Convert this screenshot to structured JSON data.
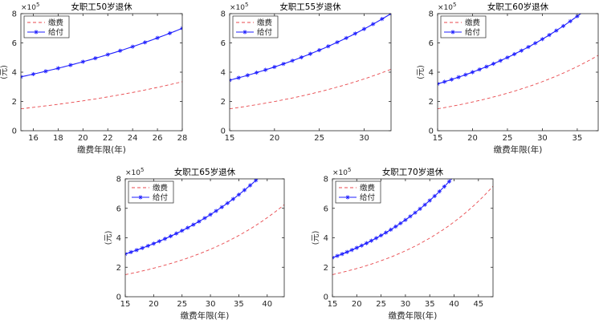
{
  "chart_data": [
    {
      "type": "line",
      "title": "女职工50岁退休",
      "xlabel": "缴费年限(年)",
      "ylabel": "(元)",
      "exponent_base": "×10",
      "exponent_power": "5",
      "xlim": [
        15,
        28
      ],
      "ylim": [
        0,
        800000
      ],
      "xticks": [
        16,
        18,
        20,
        22,
        24,
        26,
        28
      ],
      "yticks": [
        0,
        200000,
        400000,
        600000,
        800000
      ],
      "ytick_labels": [
        "0",
        "2",
        "4",
        "6",
        "8"
      ],
      "legend_position": "top-left",
      "series": [
        {
          "name": "缴费",
          "style": "dashed",
          "color": "#e8474c",
          "marker": "none",
          "x": [
            15,
            28
          ],
          "y": [
            150000,
            335000
          ]
        },
        {
          "name": "给付",
          "style": "solid",
          "color": "#1f1fff",
          "marker": "asterisk",
          "x": [
            15,
            28
          ],
          "y": [
            368000,
            700000
          ]
        }
      ]
    },
    {
      "type": "line",
      "title": "女职工55岁退休",
      "xlabel": "",
      "ylabel": "",
      "exponent_base": "×10",
      "exponent_power": "5",
      "xlim": [
        15,
        33
      ],
      "ylim": [
        0,
        800000
      ],
      "xticks": [
        15,
        20,
        25,
        30
      ],
      "yticks": [
        0,
        200000,
        400000,
        600000,
        800000
      ],
      "ytick_labels": [
        "0",
        "2",
        "4",
        "6",
        "8"
      ],
      "legend_position": "top-left",
      "series": [
        {
          "name": "缴费",
          "style": "dashed",
          "color": "#e8474c",
          "marker": "none",
          "x": [
            15,
            33
          ],
          "y": [
            150000,
            420000
          ]
        },
        {
          "name": "给付",
          "style": "solid",
          "color": "#1f1fff",
          "marker": "asterisk",
          "x": [
            15,
            33
          ],
          "y": [
            345000,
            800000
          ]
        }
      ]
    },
    {
      "type": "line",
      "title": "女职工60岁退休",
      "xlabel": "缴费年限(年)",
      "ylabel": "(元)",
      "exponent_base": "×10",
      "exponent_power": "5",
      "xlim": [
        15,
        38
      ],
      "ylim": [
        0,
        800000
      ],
      "xticks": [
        15,
        20,
        25,
        30,
        35
      ],
      "yticks": [
        0,
        200000,
        400000,
        600000,
        800000
      ],
      "ytick_labels": [
        "0",
        "2",
        "4",
        "6",
        "8"
      ],
      "legend_position": "top-left",
      "series": [
        {
          "name": "缴费",
          "style": "dashed",
          "color": "#e8474c",
          "marker": "none",
          "x": [
            15,
            38
          ],
          "y": [
            150000,
            515000
          ]
        },
        {
          "name": "给付",
          "style": "solid",
          "color": "#1f1fff",
          "marker": "asterisk",
          "x": [
            15,
            35.5
          ],
          "y": [
            320000,
            800000
          ]
        }
      ]
    },
    {
      "type": "line",
      "title": "女职工65岁退休",
      "xlabel": "缴费年限(年)",
      "ylabel": "(元)",
      "exponent_base": "×10",
      "exponent_power": "5",
      "xlim": [
        15,
        43
      ],
      "ylim": [
        0,
        800000
      ],
      "xticks": [
        15,
        20,
        25,
        30,
        35,
        40
      ],
      "yticks": [
        0,
        200000,
        400000,
        600000,
        800000
      ],
      "ytick_labels": [
        "0",
        "2",
        "4",
        "6",
        "8"
      ],
      "legend_position": "top-left",
      "series": [
        {
          "name": "缴费",
          "style": "dashed",
          "color": "#e8474c",
          "marker": "none",
          "x": [
            15,
            43
          ],
          "y": [
            150000,
            625000
          ]
        },
        {
          "name": "给付",
          "style": "solid",
          "color": "#1f1fff",
          "marker": "asterisk",
          "x": [
            15,
            38.3
          ],
          "y": [
            290000,
            800000
          ]
        }
      ]
    },
    {
      "type": "line",
      "title": "女职工70岁退休",
      "xlabel": "缴费年限(年)",
      "ylabel": "(元)",
      "exponent_base": "×10",
      "exponent_power": "5",
      "xlim": [
        15,
        48
      ],
      "ylim": [
        0,
        800000
      ],
      "xticks": [
        15,
        20,
        25,
        30,
        35,
        40,
        45
      ],
      "yticks": [
        0,
        200000,
        400000,
        600000,
        800000
      ],
      "ytick_labels": [
        "0",
        "2",
        "4",
        "6",
        "8"
      ],
      "legend_position": "top-left",
      "series": [
        {
          "name": "缴费",
          "style": "dashed",
          "color": "#e8474c",
          "marker": "none",
          "x": [
            15,
            48
          ],
          "y": [
            150000,
            750000
          ]
        },
        {
          "name": "给付",
          "style": "solid",
          "color": "#1f1fff",
          "marker": "asterisk",
          "x": [
            15,
            39.5
          ],
          "y": [
            265000,
            800000
          ]
        }
      ]
    }
  ]
}
